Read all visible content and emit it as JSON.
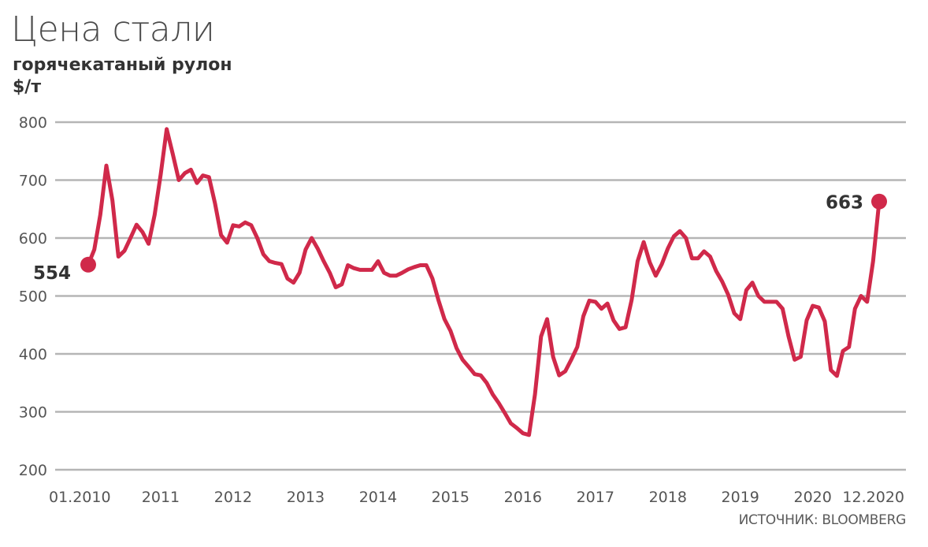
{
  "chart_data": {
    "type": "line",
    "title": "Цена стали",
    "subtitle": "горячекатаный рулон",
    "ylabel": "$/т",
    "source": "ИСТОЧНИК: BLOOMBERG",
    "ylim": [
      200,
      800
    ],
    "yticks": [
      "800",
      "700",
      "600",
      "500",
      "400",
      "300",
      "200"
    ],
    "ytick_values": [
      800,
      700,
      600,
      500,
      400,
      300,
      200
    ],
    "xlim": [
      "2010-01",
      "2020-12"
    ],
    "xticks": [
      {
        "label": "01.2010",
        "date": "2010-01"
      },
      {
        "label": "2011",
        "date": "2011-01"
      },
      {
        "label": "2012",
        "date": "2012-01"
      },
      {
        "label": "2013",
        "date": "2013-01"
      },
      {
        "label": "2014",
        "date": "2014-01"
      },
      {
        "label": "2015",
        "date": "2015-01"
      },
      {
        "label": "2016",
        "date": "2016-01"
      },
      {
        "label": "2017",
        "date": "2017-01"
      },
      {
        "label": "2018",
        "date": "2018-01"
      },
      {
        "label": "2019",
        "date": "2019-01"
      },
      {
        "label": "2020",
        "date": "2020-01"
      },
      {
        "label": "12.2020",
        "date": "2020-12"
      }
    ],
    "grid": true,
    "series": [
      {
        "color": "#d0294a",
        "points": [
          [
            "2010-01",
            554
          ],
          [
            "2010-02",
            580
          ],
          [
            "2010-03",
            640
          ],
          [
            "2010-04",
            725
          ],
          [
            "2010-05",
            665
          ],
          [
            "2010-06",
            568
          ],
          [
            "2010-07",
            578
          ],
          [
            "2010-08",
            600
          ],
          [
            "2010-09",
            623
          ],
          [
            "2010-10",
            610
          ],
          [
            "2010-11",
            590
          ],
          [
            "2010-12",
            640
          ],
          [
            "2011-01",
            710
          ],
          [
            "2011-02",
            788
          ],
          [
            "2011-03",
            745
          ],
          [
            "2011-04",
            700
          ],
          [
            "2011-05",
            712
          ],
          [
            "2011-06",
            718
          ],
          [
            "2011-07",
            695
          ],
          [
            "2011-08",
            708
          ],
          [
            "2011-09",
            705
          ],
          [
            "2011-10",
            660
          ],
          [
            "2011-11",
            605
          ],
          [
            "2011-12",
            592
          ],
          [
            "2012-01",
            622
          ],
          [
            "2012-02",
            620
          ],
          [
            "2012-03",
            627
          ],
          [
            "2012-04",
            622
          ],
          [
            "2012-05",
            600
          ],
          [
            "2012-06",
            572
          ],
          [
            "2012-07",
            560
          ],
          [
            "2012-08",
            557
          ],
          [
            "2012-09",
            555
          ],
          [
            "2012-10",
            530
          ],
          [
            "2012-11",
            523
          ],
          [
            "2012-12",
            540
          ],
          [
            "2013-01",
            580
          ],
          [
            "2013-02",
            600
          ],
          [
            "2013-03",
            582
          ],
          [
            "2013-04",
            560
          ],
          [
            "2013-05",
            540
          ],
          [
            "2013-06",
            515
          ],
          [
            "2013-07",
            520
          ],
          [
            "2013-08",
            553
          ],
          [
            "2013-09",
            548
          ],
          [
            "2013-10",
            545
          ],
          [
            "2013-11",
            545
          ],
          [
            "2013-12",
            545
          ],
          [
            "2014-01",
            560
          ],
          [
            "2014-02",
            540
          ],
          [
            "2014-03",
            535
          ],
          [
            "2014-04",
            535
          ],
          [
            "2014-05",
            540
          ],
          [
            "2014-06",
            546
          ],
          [
            "2014-07",
            550
          ],
          [
            "2014-08",
            553
          ],
          [
            "2014-09",
            553
          ],
          [
            "2014-10",
            530
          ],
          [
            "2014-11",
            493
          ],
          [
            "2014-12",
            460
          ],
          [
            "2015-01",
            440
          ],
          [
            "2015-02",
            410
          ],
          [
            "2015-03",
            390
          ],
          [
            "2015-04",
            378
          ],
          [
            "2015-05",
            365
          ],
          [
            "2015-06",
            363
          ],
          [
            "2015-07",
            350
          ],
          [
            "2015-08",
            330
          ],
          [
            "2015-09",
            315
          ],
          [
            "2015-10",
            298
          ],
          [
            "2015-11",
            280
          ],
          [
            "2015-12",
            272
          ],
          [
            "2016-01",
            263
          ],
          [
            "2016-02",
            260
          ],
          [
            "2016-03",
            330
          ],
          [
            "2016-04",
            430
          ],
          [
            "2016-05",
            460
          ],
          [
            "2016-06",
            395
          ],
          [
            "2016-07",
            363
          ],
          [
            "2016-08",
            370
          ],
          [
            "2016-09",
            390
          ],
          [
            "2016-10",
            412
          ],
          [
            "2016-11",
            465
          ],
          [
            "2016-12",
            492
          ],
          [
            "2017-01",
            490
          ],
          [
            "2017-02",
            478
          ],
          [
            "2017-03",
            487
          ],
          [
            "2017-04",
            458
          ],
          [
            "2017-05",
            443
          ],
          [
            "2017-06",
            446
          ],
          [
            "2017-07",
            493
          ],
          [
            "2017-08",
            560
          ],
          [
            "2017-09",
            593
          ],
          [
            "2017-10",
            558
          ],
          [
            "2017-11",
            535
          ],
          [
            "2017-12",
            555
          ],
          [
            "2018-01",
            582
          ],
          [
            "2018-02",
            603
          ],
          [
            "2018-03",
            612
          ],
          [
            "2018-04",
            600
          ],
          [
            "2018-05",
            565
          ],
          [
            "2018-06",
            565
          ],
          [
            "2018-07",
            577
          ],
          [
            "2018-08",
            568
          ],
          [
            "2018-09",
            543
          ],
          [
            "2018-10",
            525
          ],
          [
            "2018-11",
            502
          ],
          [
            "2018-12",
            470
          ],
          [
            "2019-01",
            460
          ],
          [
            "2019-02",
            510
          ],
          [
            "2019-03",
            523
          ],
          [
            "2019-04",
            500
          ],
          [
            "2019-05",
            490
          ],
          [
            "2019-06",
            490
          ],
          [
            "2019-07",
            490
          ],
          [
            "2019-08",
            478
          ],
          [
            "2019-09",
            430
          ],
          [
            "2019-10",
            390
          ],
          [
            "2019-11",
            395
          ],
          [
            "2019-12",
            458
          ],
          [
            "2020-01",
            483
          ],
          [
            "2020-02",
            480
          ],
          [
            "2020-03",
            456
          ],
          [
            "2020-04",
            372
          ],
          [
            "2020-05",
            362
          ],
          [
            "2020-06",
            405
          ],
          [
            "2020-07",
            412
          ],
          [
            "2020-08",
            478
          ],
          [
            "2020-09",
            500
          ],
          [
            "2020-10",
            490
          ],
          [
            "2020-11",
            560
          ],
          [
            "2020-12",
            663
          ]
        ]
      }
    ],
    "annotations": [
      {
        "date": "2010-01",
        "value": 554,
        "text": "554"
      },
      {
        "date": "2020-12",
        "value": 663,
        "text": "663"
      }
    ]
  }
}
